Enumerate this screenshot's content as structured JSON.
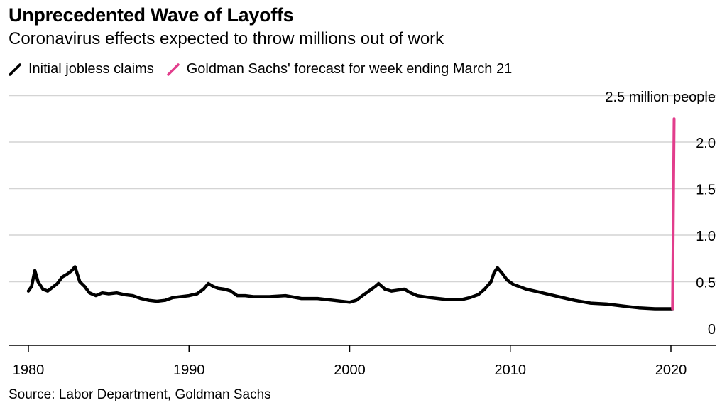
{
  "title": "Unprecedented Wave of Layoffs",
  "subtitle": "Coronavirus effects expected to throw millions out of work",
  "legend": [
    {
      "label": "Initial jobless claims",
      "color": "#000000"
    },
    {
      "label": "Goldman Sachs' forecast for week ending March 21",
      "color": "#e23d8c"
    }
  ],
  "source": "Source: Labor Department, Goldman Sachs",
  "chart_data": {
    "type": "line",
    "ylabel": "2.5 million people",
    "ylim": [
      0,
      2.5
    ],
    "xlim": [
      1980,
      2022.3
    ],
    "y_ticks": [
      {
        "value": 0,
        "label": "0"
      },
      {
        "value": 0.5,
        "label": "0.5"
      },
      {
        "value": 1.0,
        "label": "1.0"
      },
      {
        "value": 1.5,
        "label": "1.5"
      },
      {
        "value": 2.0,
        "label": "2.0"
      }
    ],
    "x_ticks": [
      {
        "value": 1980,
        "label": "1980"
      },
      {
        "value": 1990,
        "label": "1990"
      },
      {
        "value": 2000,
        "label": "2000"
      },
      {
        "value": 2010,
        "label": "2010"
      },
      {
        "value": 2020,
        "label": "2020"
      }
    ],
    "grid": true,
    "legend_position": "top-left",
    "series": [
      {
        "name": "Initial jobless claims",
        "color": "#000000",
        "x": [
          1980.0,
          1980.2,
          1980.4,
          1980.6,
          1980.9,
          1981.2,
          1981.5,
          1981.8,
          1982.1,
          1982.4,
          1982.7,
          1982.9,
          1983.2,
          1983.5,
          1983.8,
          1984.2,
          1984.6,
          1985.0,
          1985.5,
          1986.0,
          1986.5,
          1987.0,
          1987.5,
          1988.0,
          1988.5,
          1989.0,
          1989.5,
          1990.0,
          1990.5,
          1990.9,
          1991.2,
          1991.5,
          1991.8,
          1992.2,
          1992.6,
          1993.0,
          1993.5,
          1994.0,
          1995.0,
          1996.0,
          1997.0,
          1998.0,
          1999.0,
          2000.0,
          2000.4,
          2000.8,
          2001.2,
          2001.6,
          2001.8,
          2002.2,
          2002.6,
          2003.0,
          2003.4,
          2003.8,
          2004.2,
          2005.0,
          2006.0,
          2007.0,
          2007.5,
          2008.0,
          2008.4,
          2008.8,
          2009.0,
          2009.2,
          2009.5,
          2009.8,
          2010.2,
          2011.0,
          2012.0,
          2013.0,
          2014.0,
          2015.0,
          2016.0,
          2017.0,
          2018.0,
          2019.0,
          2019.5,
          2020.1
        ],
        "values": [
          0.4,
          0.45,
          0.62,
          0.5,
          0.42,
          0.4,
          0.44,
          0.48,
          0.55,
          0.58,
          0.62,
          0.66,
          0.5,
          0.45,
          0.38,
          0.35,
          0.38,
          0.37,
          0.38,
          0.36,
          0.35,
          0.32,
          0.3,
          0.29,
          0.3,
          0.33,
          0.34,
          0.35,
          0.37,
          0.42,
          0.48,
          0.45,
          0.43,
          0.42,
          0.4,
          0.35,
          0.35,
          0.34,
          0.34,
          0.35,
          0.32,
          0.32,
          0.3,
          0.28,
          0.3,
          0.35,
          0.4,
          0.45,
          0.48,
          0.42,
          0.4,
          0.41,
          0.42,
          0.38,
          0.35,
          0.33,
          0.31,
          0.31,
          0.33,
          0.36,
          0.42,
          0.5,
          0.6,
          0.65,
          0.59,
          0.52,
          0.47,
          0.42,
          0.38,
          0.34,
          0.3,
          0.27,
          0.26,
          0.24,
          0.22,
          0.21,
          0.21,
          0.21
        ]
      },
      {
        "name": "Goldman Sachs' forecast for week ending March 21",
        "color": "#e23d8c",
        "x": [
          2020.1,
          2020.2
        ],
        "values": [
          0.21,
          2.25
        ]
      }
    ]
  }
}
